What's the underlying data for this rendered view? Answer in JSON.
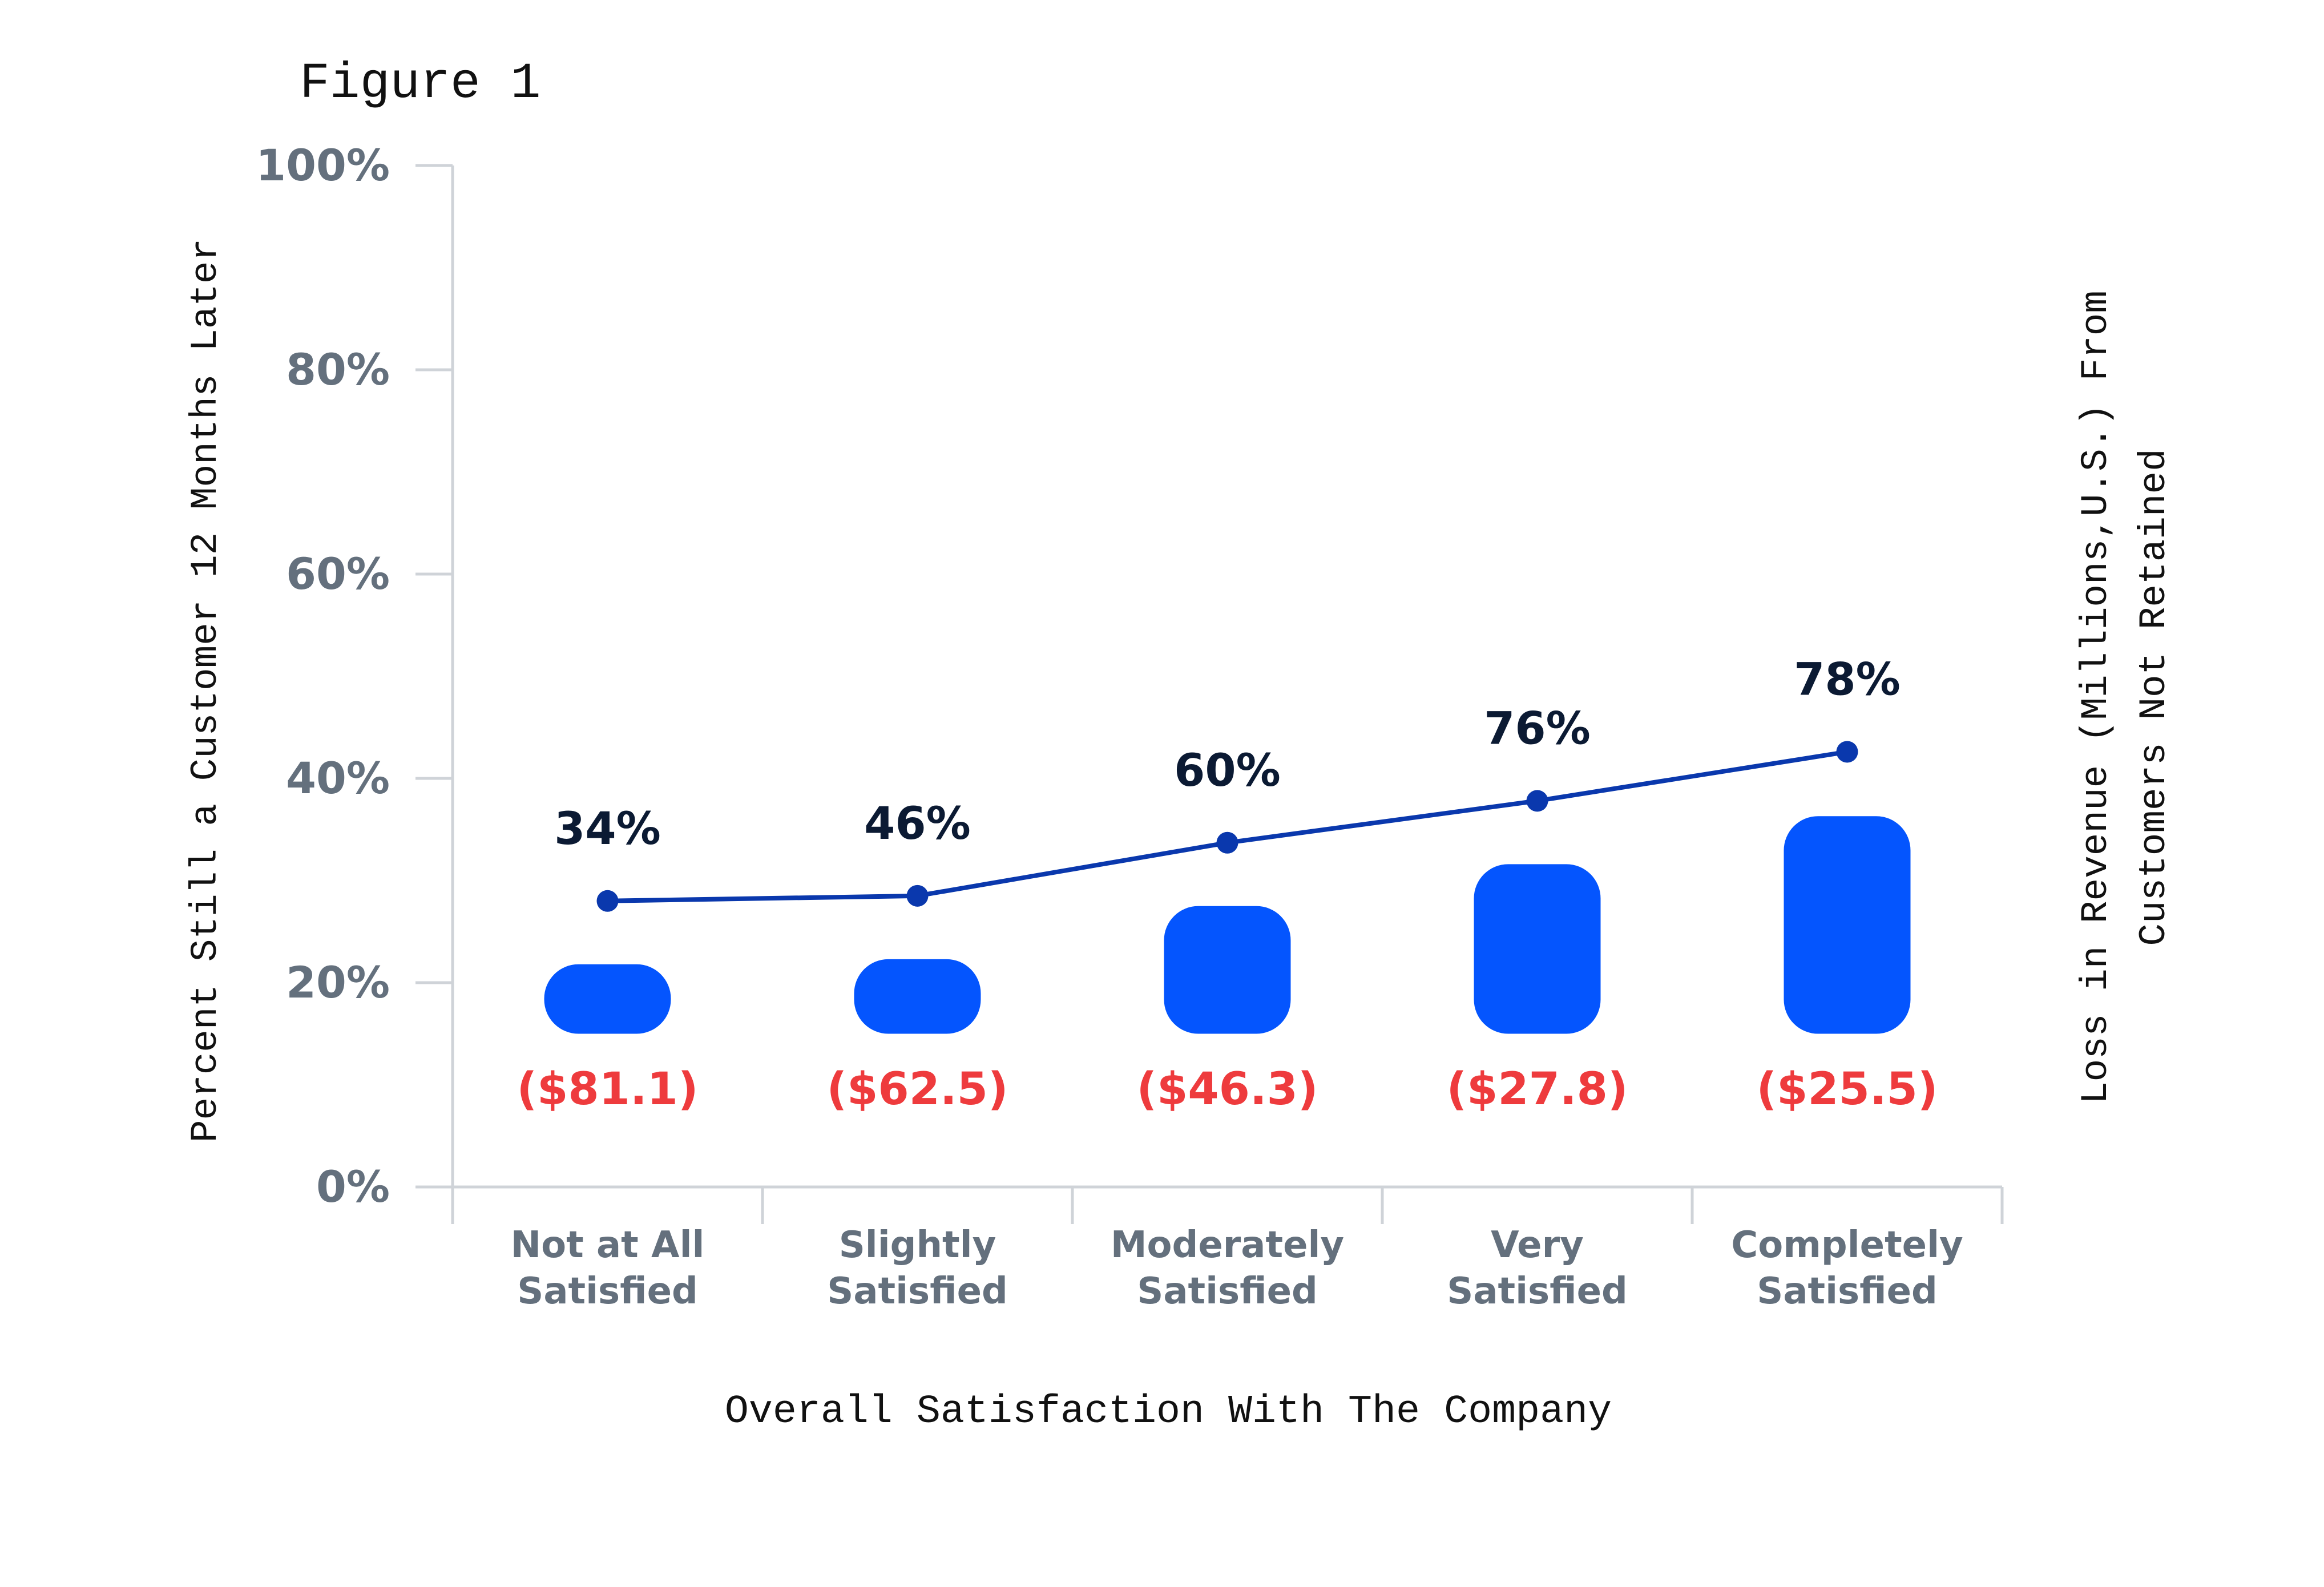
{
  "chart_data": {
    "type": "bar+line",
    "title": "Figure 1",
    "xlabel": "Overall Satisfaction With The Company",
    "ylabel": "Percent Still a Customer 12 Months Later",
    "y2label_line1": "Loss in Revenue (Millions,U.S.) From",
    "y2label_line2": "Customers Not Retained",
    "ylim": [
      0,
      100
    ],
    "yticks": [
      "0%",
      "20%",
      "40%",
      "60%",
      "80%",
      "100%"
    ],
    "categories": [
      {
        "line1": "Not at All",
        "line2": "Satisfied"
      },
      {
        "line1": "Slightly",
        "line2": "Satisfied"
      },
      {
        "line1": "Moderately",
        "line2": "Satisfied"
      },
      {
        "line1": "Very",
        "line2": "Satisfied"
      },
      {
        "line1": "Completely",
        "line2": "Satisfied"
      }
    ],
    "retention_line": {
      "name": "Percent Still a Customer",
      "plotted_y": [
        28,
        28.5,
        33.7,
        37.8,
        42.6
      ],
      "labels": [
        "34%",
        "46%",
        "60%",
        "76%",
        "78%"
      ]
    },
    "revenue_bars": {
      "name": "Loss in Revenue",
      "bottom": 15,
      "top": [
        21.8,
        22.3,
        27.5,
        31.6,
        36.3
      ],
      "labels": [
        "($81.1)",
        "($62.5)",
        "($46.3)",
        "($27.8)",
        "($25.5)"
      ]
    },
    "colors": {
      "bar": "#0455fe",
      "line": "#0a38ad",
      "pct_label": "#0b1a33",
      "loss_label": "#ee3b3d",
      "axis": "#cfd3d8"
    }
  }
}
